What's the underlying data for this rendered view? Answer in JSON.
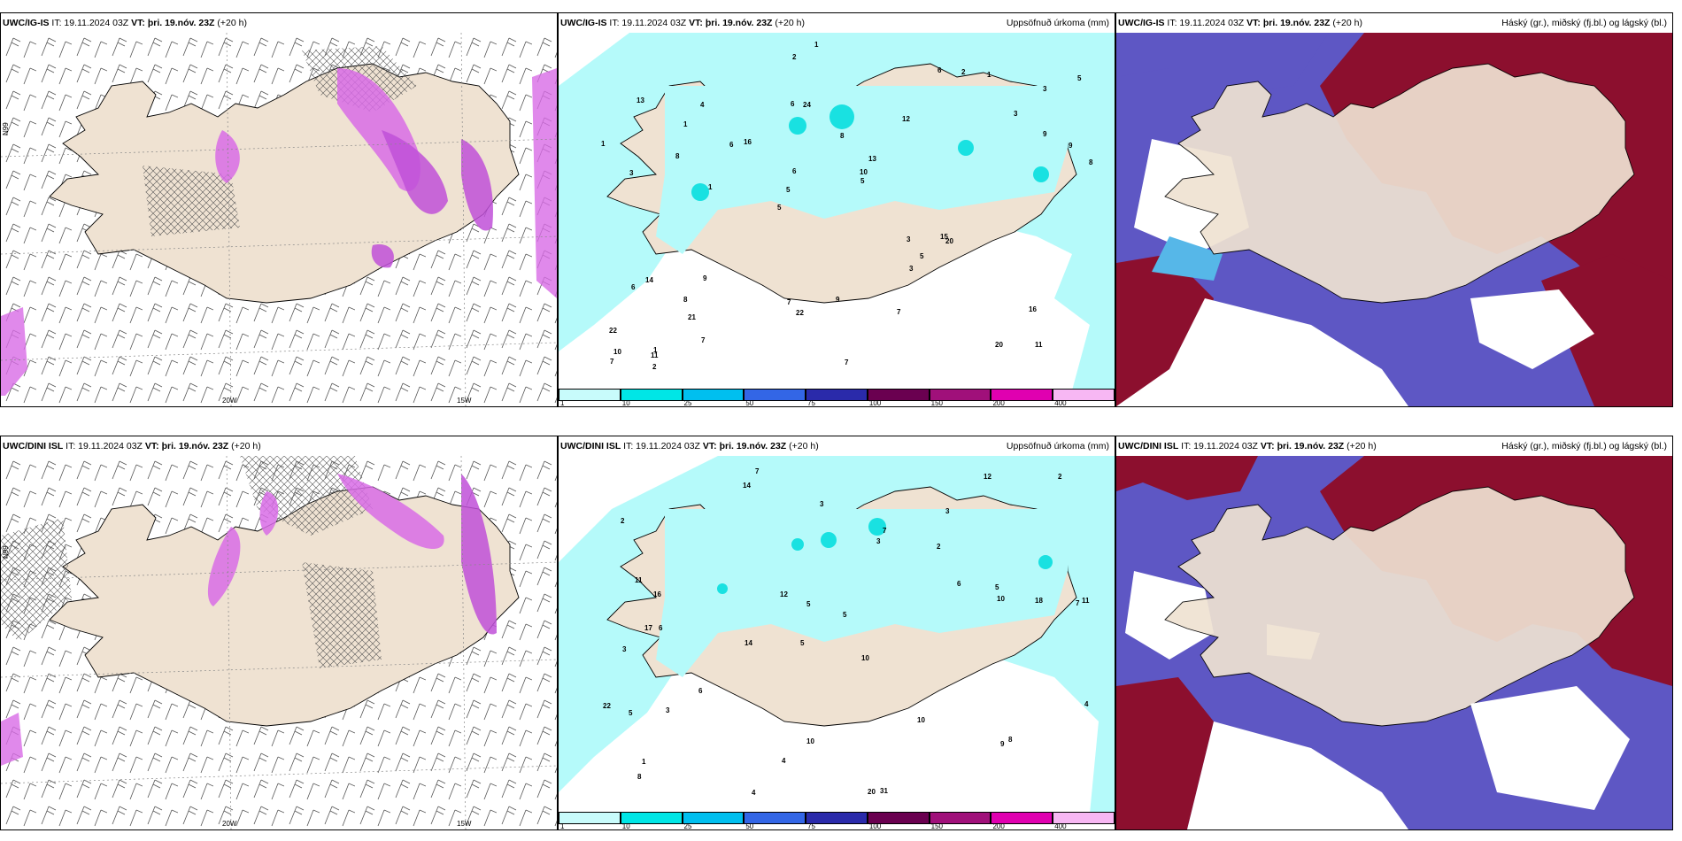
{
  "palette": {
    "land": "#efe2d2",
    "precip_light": "#b5fafa",
    "precip_mid": "#19e1e1",
    "cloud_high": "#8c0f2e",
    "cloud_mid": "#5e57c4",
    "cloud_low": "#56b7e8",
    "precip_magenta": "#d86ce6"
  },
  "panels": [
    {
      "model": "UWC/IG-IS",
      "it": "IT: 19.11.2024 03Z",
      "vt_label": "VT:",
      "vt": "þri. 19.nóv. 23Z",
      "lead": "(+20 h)",
      "title_right": "",
      "axis": {
        "lon_a": "20W",
        "lon_b": "15W",
        "lat_a": "66N",
        "lat_b": "N99"
      }
    },
    {
      "model": "UWC/IG-IS",
      "it": "IT: 19.11.2024 03Z",
      "vt_label": "VT:",
      "vt": "þri. 19.nóv. 23Z",
      "lead": "(+20 h)",
      "title_right": "Uppsöfnuð úrkoma (mm)",
      "values": [
        "11",
        "3",
        "3",
        "5",
        "12",
        "1",
        "6",
        "8",
        "14",
        "16",
        "22",
        "21",
        "24",
        "13",
        "20",
        "13",
        "2",
        "8",
        "3",
        "9",
        "5",
        "7",
        "6",
        "4",
        "6",
        "9",
        "20",
        "16",
        "15",
        "7",
        "6",
        "8",
        "3",
        "7",
        "9",
        "10",
        "10",
        "22",
        "5",
        "6",
        "3",
        "5",
        "5",
        "7",
        "8",
        "2",
        "7",
        "9",
        "1",
        "1",
        "1",
        "1",
        "1",
        "2",
        "11"
      ]
    },
    {
      "model": "UWC/IG-IS",
      "it": "IT: 19.11.2024 03Z",
      "vt_label": "VT:",
      "vt": "þri. 19.nóv. 23Z",
      "lead": "(+20 h)",
      "title_right": "Háský (gr.), miðský (fj.bl.) og lágský (bl.)"
    },
    {
      "model": "UWC/DINI ISL",
      "it": "IT: 19.11.2024 03Z",
      "vt_label": "VT:",
      "vt": "þri. 19.nóv. 23Z",
      "lead": "(+20 h)",
      "title_right": "",
      "axis": {
        "lon_a": "20W",
        "lon_b": "15W",
        "lat_a": "66N",
        "lat_b": "N99"
      }
    },
    {
      "model": "UWC/DINI ISL",
      "it": "IT: 19.11.2024 03Z",
      "vt_label": "VT:",
      "vt": "þri. 19.nóv. 23Z",
      "lead": "(+20 h)",
      "title_right": "Uppsöfnuð úrkoma (mm)",
      "values": [
        "7",
        "3",
        "7",
        "5",
        "10",
        "6",
        "2",
        "2",
        "3",
        "3",
        "5",
        "8",
        "14",
        "14",
        "20",
        "31",
        "10",
        "12",
        "6",
        "6",
        "16",
        "17",
        "11",
        "18",
        "22",
        "11",
        "5",
        "10",
        "8",
        "5",
        "9",
        "7",
        "3",
        "12",
        "10",
        "4",
        "5",
        "4",
        "2",
        "3",
        "1",
        "4"
      ]
    },
    {
      "model": "UWC/DINI ISL",
      "it": "IT: 19.11.2024 03Z",
      "vt_label": "VT:",
      "vt": "þri. 19.nóv. 23Z",
      "lead": "(+20 h)",
      "title_right": "Háský (gr.), miðský (fj.bl.) og lágský (bl.)"
    }
  ],
  "colorbar": {
    "ticks": [
      "1",
      "10",
      "25",
      "50",
      "75",
      "100",
      "150",
      "200",
      "400"
    ],
    "colors": [
      "#c8fbfb",
      "#00e6e6",
      "#00bfef",
      "#3366e6",
      "#2a2aaa",
      "#6a0050",
      "#a0107a",
      "#e000b0",
      "#f7b7f3"
    ]
  }
}
